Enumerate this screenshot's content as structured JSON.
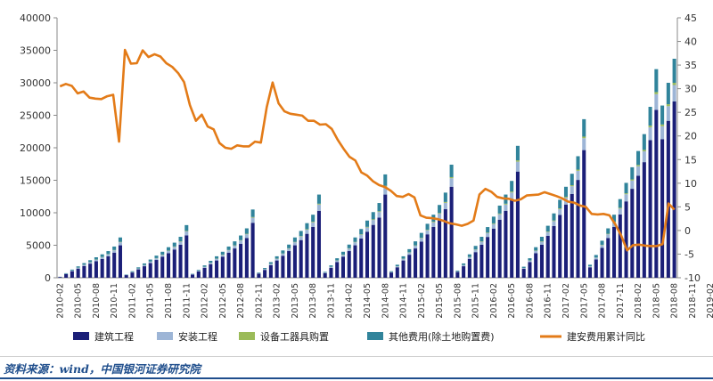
{
  "colors": {
    "construction": "#1b1f78",
    "installation": "#9db5d6",
    "equipment": "#9bbb59",
    "other": "#31849b",
    "yoy_line": "#e37b18"
  },
  "source": "资料来源：wind，中国银河证券研究院",
  "chart_data": {
    "type": "bar",
    "title": "",
    "xlabel": "",
    "ylabel": "",
    "ylim": [
      0,
      40000
    ],
    "y2lim": [
      -10,
      45
    ],
    "yticks": [
      0,
      5000,
      10000,
      15000,
      20000,
      25000,
      30000,
      35000,
      40000
    ],
    "y2ticks": [
      -10,
      -5,
      0,
      5,
      10,
      15,
      20,
      25,
      30,
      35,
      40,
      45
    ],
    "legend_position": "bottom",
    "x_tick_labels": [
      "2010-02",
      "2010-05",
      "2010-08",
      "2010-11",
      "2011-02",
      "2011-05",
      "2011-08",
      "2011-11",
      "2012-02",
      "2012-05",
      "2012-08",
      "2012-11",
      "2013-02",
      "2013-05",
      "2013-08",
      "2013-11",
      "2014-02",
      "2014-05",
      "2014-08",
      "2014-11",
      "2015-02",
      "2015-05",
      "2015-08",
      "2015-11",
      "2016-02",
      "2016-05",
      "2016-08",
      "2016-11",
      "2017-02",
      "2017-05",
      "2017-08",
      "2017-11",
      "2018-02",
      "2018-05",
      "2018-08",
      "2018-11",
      "2019-02"
    ],
    "years": [
      {
        "year": 2010,
        "start_month": 2,
        "totals": [
          150,
          700,
          1250,
          1750,
          2250,
          2700,
          3150,
          3600,
          4100,
          4800,
          6200
        ]
      },
      {
        "year": 2011,
        "start_month": 2,
        "totals": [
          500,
          1000,
          1600,
          2200,
          2800,
          3400,
          4000,
          4700,
          5400,
          6300,
          8100
        ]
      },
      {
        "year": 2012,
        "start_month": 2,
        "totals": [
          600,
          1200,
          1900,
          2600,
          3300,
          4000,
          4800,
          5600,
          6500,
          7600,
          10500
        ]
      },
      {
        "year": 2013,
        "start_month": 2,
        "totals": [
          800,
          1500,
          2400,
          3300,
          4200,
          5100,
          6200,
          7200,
          8400,
          9700,
          12800
        ]
      },
      {
        "year": 2014,
        "start_month": 2,
        "totals": [
          900,
          1900,
          3000,
          4000,
          5100,
          6200,
          7500,
          8800,
          10100,
          11500,
          15900
        ]
      },
      {
        "year": 2015,
        "start_month": 2,
        "totals": [
          1000,
          2000,
          3300,
          4400,
          5600,
          6900,
          8300,
          9700,
          11200,
          13100,
          17400
        ]
      },
      {
        "year": 2016,
        "start_month": 2,
        "totals": [
          1100,
          2200,
          3600,
          4900,
          6300,
          7800,
          9400,
          11100,
          12800,
          14900,
          20300
        ]
      },
      {
        "year": 2017,
        "start_month": 2,
        "totals": [
          1700,
          3000,
          4700,
          6300,
          8000,
          9900,
          12000,
          14000,
          16000,
          18700,
          24400
        ]
      },
      {
        "year": 2018,
        "start_month": 2,
        "totals": [
          2000,
          3500,
          5700,
          7600,
          9700,
          12100,
          14600,
          17000,
          19500,
          22100,
          26300
        ]
      }
    ],
    "tail_bars": [
      {
        "month": "2018-12",
        "total": 32100
      },
      {
        "month": "2019-02",
        "total": 26500
      },
      {
        "month": "2019-03",
        "total": 30000
      },
      {
        "month": "2019-04",
        "total": 33700
      }
    ],
    "component_shares": {
      "construction": 0.805,
      "installation": 0.075,
      "equipment": 0.01,
      "other": 0.11
    },
    "yoy_series": {
      "name": "建安费用累计同比",
      "axis": "right",
      "values": [
        30.5,
        31.0,
        30.6,
        29.0,
        29.4,
        28.1,
        27.9,
        27.8,
        28.4,
        28.7,
        18.8,
        38.2,
        35.3,
        35.4,
        38.1,
        36.7,
        37.3,
        36.8,
        35.4,
        34.6,
        33.3,
        31.4,
        26.5,
        23.2,
        24.5,
        22.0,
        21.4,
        18.5,
        17.5,
        17.3,
        18.0,
        17.8,
        17.8,
        18.8,
        18.6,
        26.1,
        31.3,
        26.9,
        25.2,
        24.7,
        24.5,
        24.3,
        23.2,
        23.2,
        22.4,
        22.5,
        21.5,
        19.2,
        17.3,
        15.6,
        14.8,
        12.3,
        11.6,
        10.4,
        9.6,
        9.2,
        8.4,
        7.3,
        7.1,
        7.7,
        7.0,
        3.2,
        2.7,
        2.6,
        2.4,
        2.0,
        1.5,
        1.3,
        1.0,
        1.4,
        2.1,
        7.6,
        8.8,
        8.2,
        7.1,
        6.8,
        6.7,
        6.3,
        6.6,
        7.4,
        7.5,
        7.6,
        8.1,
        7.7,
        7.3,
        6.8,
        6.1,
        5.9,
        5.3,
        5.0,
        3.5,
        3.4,
        3.5,
        3.2,
        1.3,
        -1.1,
        -4.2,
        -3.1,
        -3.0,
        -3.2,
        -3.3,
        -3.3,
        -2.9,
        5.7,
        4.4
      ]
    },
    "legend": [
      {
        "key": "construction",
        "label": "建筑工程",
        "kind": "bar"
      },
      {
        "key": "installation",
        "label": "安装工程",
        "kind": "bar"
      },
      {
        "key": "equipment",
        "label": "设备工器具购置",
        "kind": "bar"
      },
      {
        "key": "other",
        "label": "其他费用(除土地购置费)",
        "kind": "bar"
      },
      {
        "key": "yoy_line",
        "label": "建安费用累计同比",
        "kind": "line"
      }
    ]
  }
}
